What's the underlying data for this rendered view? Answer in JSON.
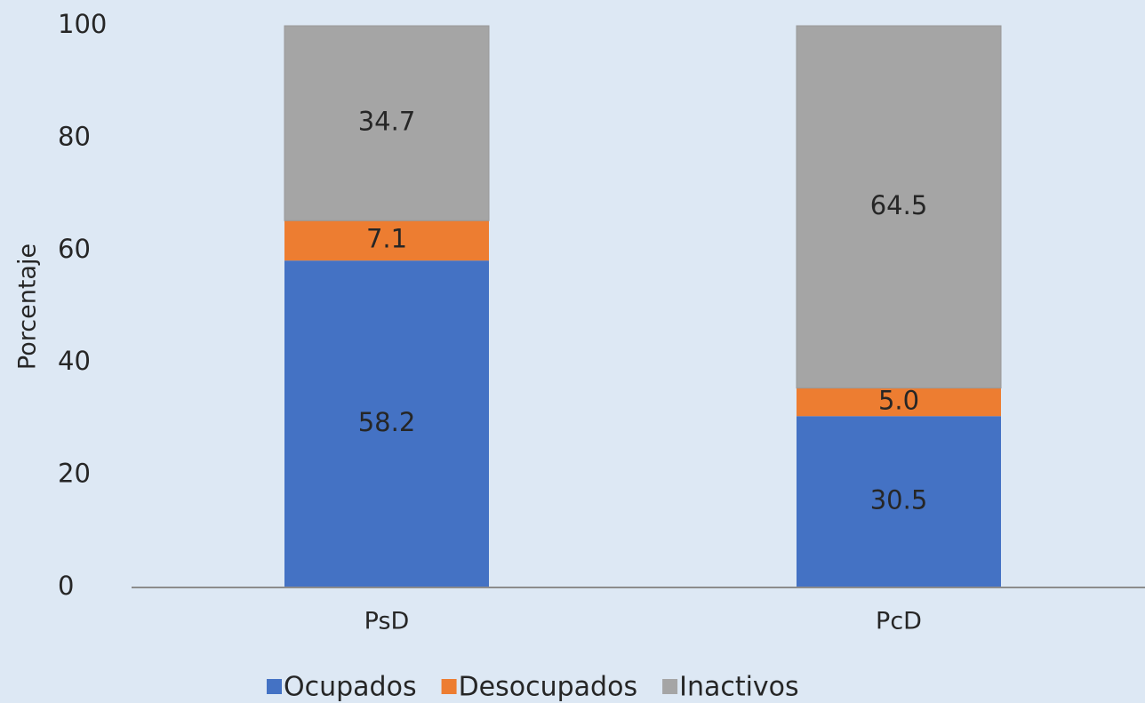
{
  "chart_data": {
    "type": "stacked_bar",
    "y_label": "Porcentaje",
    "categories": [
      "PsD",
      "PcD"
    ],
    "series": [
      {
        "name": "Ocupados",
        "color": "#4472c4",
        "values": [
          58.2,
          30.5
        ]
      },
      {
        "name": "Desocupados",
        "color": "#ed7d31",
        "values": [
          7.1,
          5.0
        ],
        "value_labels": [
          "7.1",
          "5.0"
        ]
      },
      {
        "name": "Inactivos",
        "color": "#a5a5a5",
        "values": [
          34.7,
          64.5
        ]
      }
    ],
    "ylim": [
      0,
      100
    ],
    "yticks": [
      0,
      20,
      40,
      60,
      80,
      100
    ],
    "grid": false,
    "legend": "bottom"
  }
}
